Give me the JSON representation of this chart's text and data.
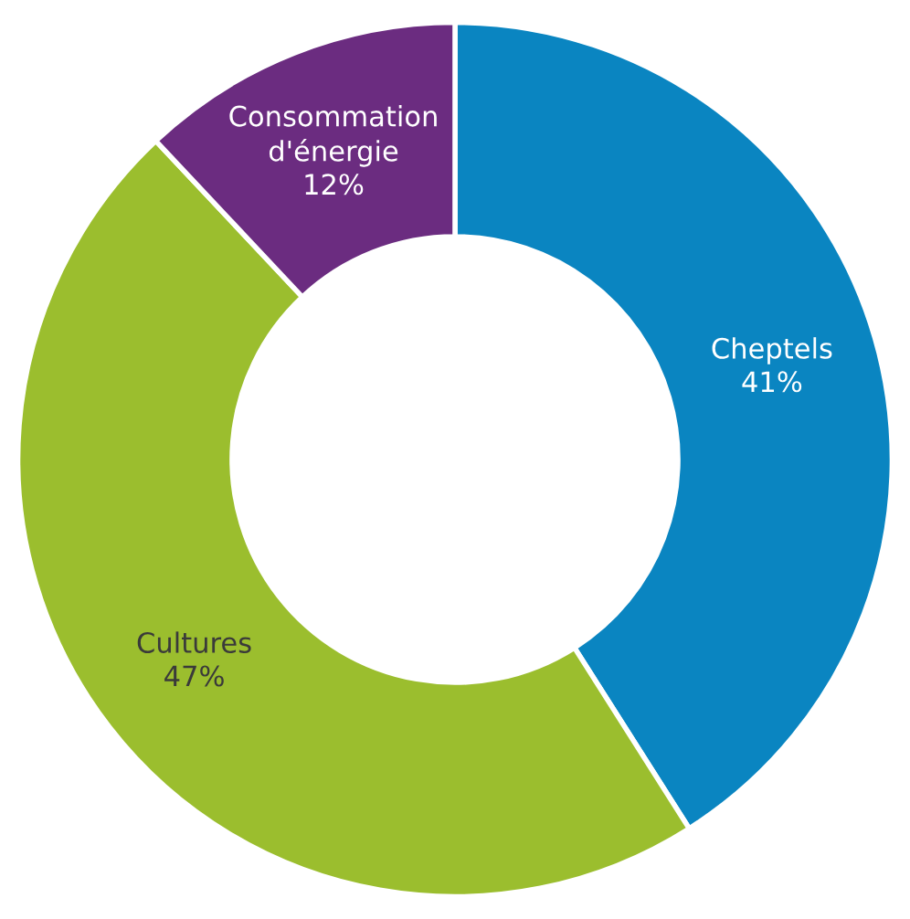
{
  "chart_data": {
    "type": "donut",
    "categories": [
      "Cheptels",
      "Cultures",
      "Consommation d'énergie"
    ],
    "values": [
      41,
      47,
      12
    ],
    "value_labels": [
      "41%",
      "47%",
      "12%"
    ],
    "colors": [
      "#0a85c1",
      "#9bbe2e",
      "#6b2c80"
    ],
    "legend": false
  }
}
